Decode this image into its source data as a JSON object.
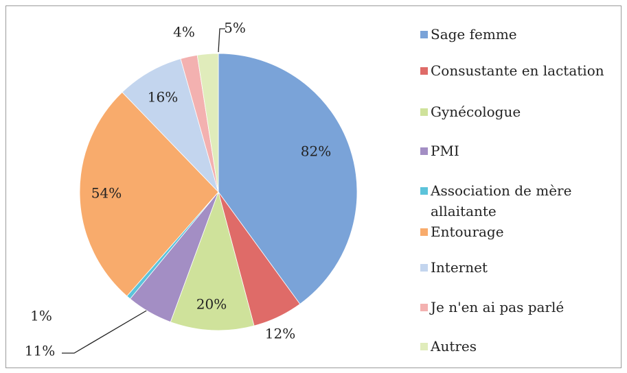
{
  "chart_data": {
    "type": "pie",
    "categories": [
      "Sage femme",
      "Consustante en lactation",
      "Gynécologue",
      "PMI",
      "Association de mère allaitante",
      "Entourage",
      "Internet",
      "Je n'en ai pas parlé",
      "Autres"
    ],
    "values": [
      82,
      12,
      20,
      11,
      1,
      54,
      16,
      4,
      5
    ],
    "value_labels": [
      "82%",
      "12%",
      "20%",
      "11%",
      "1%",
      "54%",
      "16%",
      "4%",
      "5%"
    ],
    "colors": [
      "#7aa3d8",
      "#df6b68",
      "#cfe29b",
      "#a38ec4",
      "#5cc3da",
      "#f8ab6c",
      "#c3d5ee",
      "#f3b1b0",
      "#e0ecbb"
    ],
    "legend": "right"
  }
}
